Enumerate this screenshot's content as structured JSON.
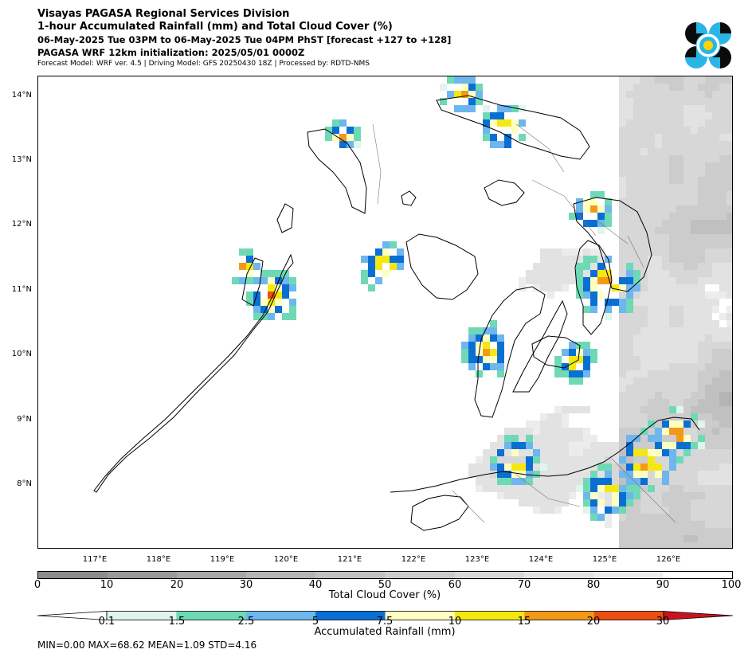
{
  "header": {
    "line1": "Visayas PAGASA Regional Services Division",
    "line2": "1-hour Accumulated Rainfall (mm) and Total Cloud Cover (%)",
    "line3": "06-May-2025 Tue 03PM to 06-May-2025 Tue 04PM PhST [forecast +127 to +128]",
    "line4": "PAGASA WRF 12km initialization: 2025/05/01 0000Z",
    "line5": "Forecast Model: WRF ver. 4.5 | Driving Model: GFS 20250430 18Z | Processed by: RDTD-NMS"
  },
  "logo": {
    "name": "pagasa-logo",
    "colors": [
      "#0b0b0b",
      "#29b6e6",
      "#ffffff",
      "#ffd400"
    ]
  },
  "map": {
    "lat_labels": [
      "14°N",
      "13°N",
      "12°N",
      "11°N",
      "10°N",
      "9°N",
      "8°N"
    ],
    "lon_labels": [
      "117°E",
      "118°E",
      "119°E",
      "120°E",
      "121°E",
      "122°E",
      "123°E",
      "124°E",
      "125°E",
      "126°E"
    ],
    "extent": {
      "lon": [
        116.0,
        126.9
      ],
      "lat": [
        7.0,
        14.3
      ]
    }
  },
  "cloud_colorbar": {
    "ticks": [
      "0",
      "10",
      "20",
      "30",
      "40",
      "50",
      "60",
      "70",
      "80",
      "90",
      "100"
    ],
    "colors": [
      "#8c8c8c",
      "#9a9a9a",
      "#a7a7a7",
      "#b4b4b4",
      "#c0c0c0",
      "#cccccc",
      "#d7d7d7",
      "#e2e2e2",
      "#ececec",
      "#ffffff"
    ],
    "label": "Total Cloud Cover (%)"
  },
  "rain_colorbar": {
    "ticks": [
      "0.1",
      "1.5",
      "2.5",
      "5",
      "7.5",
      "10",
      "15",
      "20",
      "30"
    ],
    "colors": [
      "#dff5ee",
      "#6fd9b6",
      "#6db6ee",
      "#0a6fd3",
      "#ffffc2",
      "#f5e812",
      "#f29a18",
      "#ea5012"
    ],
    "under_color": "#ffffff",
    "over_color": "#c8141e",
    "label": "Accumulated Rainfall (mm)"
  },
  "stats": "MIN=0.00   MAX=68.62   MEAN=1.09   STD=4.16"
}
